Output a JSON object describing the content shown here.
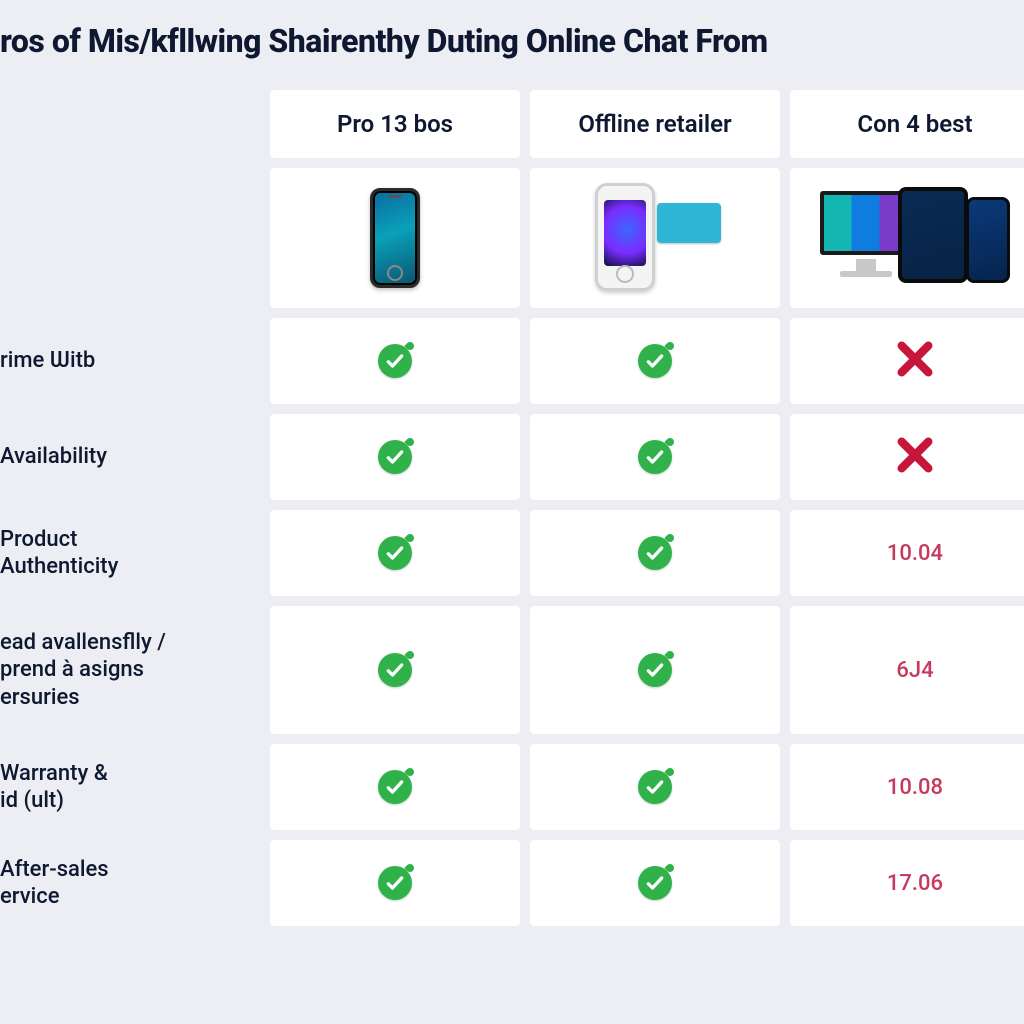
{
  "title": "ros of Mis/kfllwing Shairenthy Duting Online Chat From",
  "type": "comparison-table",
  "background_color": "#eceef4",
  "cell_background": "#ffffff",
  "text_color": "#0e1830",
  "value_text_color": "#c63a5d",
  "check_color": "#2fb24a",
  "cross_color": "#c8153a",
  "title_fontsize": 32,
  "header_fontsize": 24,
  "rowlabel_fontsize": 22,
  "value_fontsize": 22,
  "columns": [
    {
      "id": "col1",
      "label": "Pro 13 bos",
      "image": "single-phone"
    },
    {
      "id": "col2",
      "label": "Offline retailer",
      "image": "phone-with-tag"
    },
    {
      "id": "col3",
      "label": "Con 4 best",
      "image": "multi-device"
    }
  ],
  "rows": [
    {
      "id": "r1",
      "label": "rime Ѡitb",
      "cells": [
        "check",
        "check",
        "cross"
      ]
    },
    {
      "id": "r2",
      "label": "Availability",
      "cells": [
        "check",
        "check",
        "cross"
      ]
    },
    {
      "id": "r3",
      "label": "Product\nAuthenticity",
      "cells": [
        "check",
        "check",
        "10.04"
      ]
    },
    {
      "id": "r4",
      "label": "ead avallensflly /\nprend à asigns\nersuries",
      "cells": [
        "check",
        "check",
        "6J4"
      ]
    },
    {
      "id": "r5",
      "label": "Warranty &\nid (ult)",
      "cells": [
        "check",
        "check",
        "10.08"
      ]
    },
    {
      "id": "r6",
      "label": "After-sales\nervice",
      "cells": [
        "check",
        "check",
        "17.06"
      ]
    }
  ]
}
